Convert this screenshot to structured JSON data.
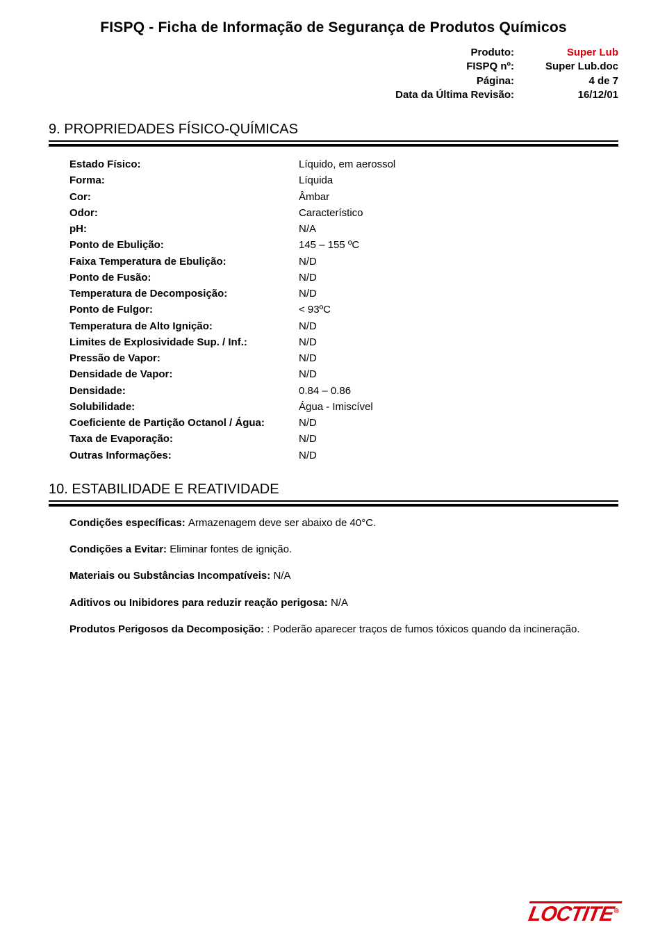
{
  "accent_color": "#d9000d",
  "header": {
    "title": "FISPQ  -  Ficha de Informação de Segurança de Produtos Químicos",
    "meta": [
      {
        "label": "Produto:",
        "value": "Super Lub",
        "value_color": "#d9000d"
      },
      {
        "label": "FISPQ nº:",
        "value": "Super Lub.doc",
        "value_color": "#000000"
      },
      {
        "label": "Página:",
        "value": "4 de 7",
        "value_color": "#000000"
      },
      {
        "label": "Data da Última Revisão:",
        "value": "16/12/01",
        "value_color": "#000000"
      }
    ]
  },
  "section9": {
    "heading": "9. PROPRIEDADES FÍSICO-QUÍMICAS",
    "rows": [
      {
        "label": "Estado Físico:",
        "value": "Líquido, em aerossol"
      },
      {
        "label": "Forma:",
        "value": "Líquida"
      },
      {
        "label": "Cor:",
        "value": "Âmbar"
      },
      {
        "label": "Odor:",
        "value": "Característico"
      },
      {
        "label": "pH:",
        "value": "N/A"
      },
      {
        "label": "Ponto de Ebulição:",
        "value": "145 – 155 ºC"
      },
      {
        "label": "Faixa Temperatura de Ebulição:",
        "value": "N/D"
      },
      {
        "label": "Ponto de Fusão:",
        "value": "N/D"
      },
      {
        "label": "Temperatura de Decomposição:",
        "value": "N/D"
      },
      {
        "label": "Ponto de Fulgor:",
        "value": "< 93ºC"
      },
      {
        "label": "Temperatura de Alto Ignição:",
        "value": "N/D"
      },
      {
        "label": "Limites de Explosividade Sup. / Inf.:",
        "value": "N/D"
      },
      {
        "label": "Pressão de Vapor:",
        "value": "N/D"
      },
      {
        "label": "Densidade de Vapor:",
        "value": "N/D"
      },
      {
        "label": "Densidade:",
        "value": "0.84 – 0.86"
      },
      {
        "label": "Solubilidade:",
        "value": "Água - Imiscível"
      },
      {
        "label": "Coeficiente de Partição Octanol / Água:",
        "value": "N/D"
      },
      {
        "label": "Taxa de Evaporação:",
        "value": "N/D"
      },
      {
        "label": "Outras Informações:",
        "value": "N/D"
      }
    ]
  },
  "section10": {
    "heading": "10. ESTABILIDADE E REATIVIDADE",
    "items": [
      {
        "label": "Condições específicas: ",
        "text": "Armazenagem deve ser abaixo de 40°C."
      },
      {
        "label": "Condições a Evitar: ",
        "text": "Eliminar fontes de ignição."
      },
      {
        "label": "Materiais ou Substâncias Incompatíveis: ",
        "text": "N/A"
      },
      {
        "label": "Aditivos ou Inibidores para reduzir reação perigosa: ",
        "text": "N/A"
      },
      {
        "label": "Produtos Perigosos da Decomposição: ",
        "text": ": Poderão aparecer traços de fumos tóxicos quando da incineração."
      }
    ]
  },
  "footer": {
    "brand": "LOCTITE",
    "reg": "®"
  }
}
